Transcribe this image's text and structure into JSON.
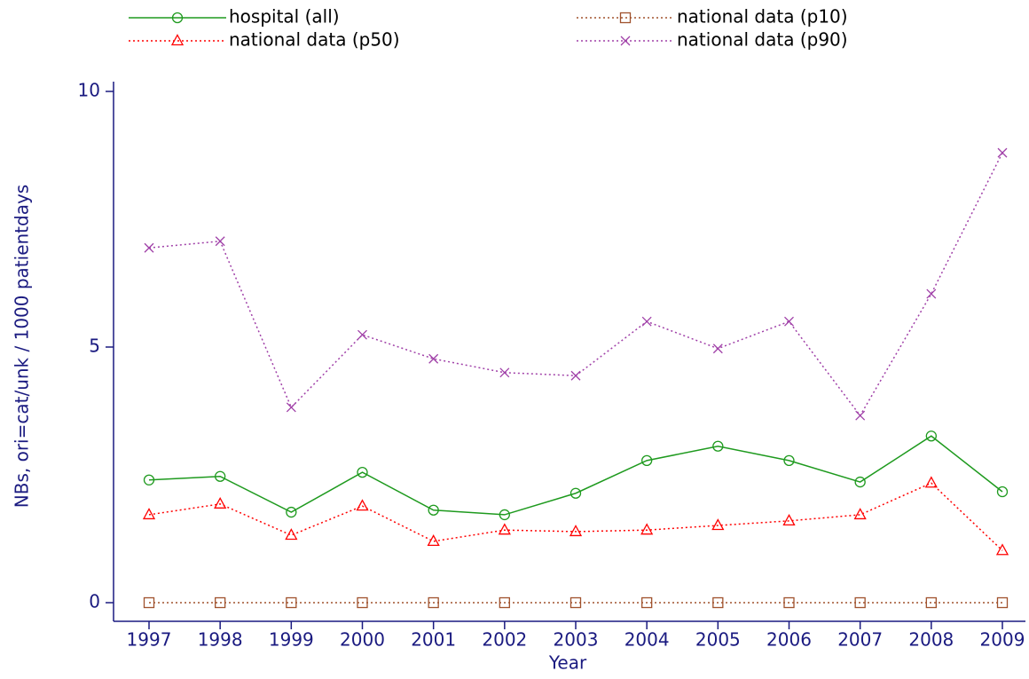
{
  "chart_data": {
    "type": "line",
    "xlabel": "Year",
    "ylabel": "NBs, ori=cat/unk / 1000 patientdays",
    "categories": [
      "1997",
      "1998",
      "1999",
      "2000",
      "2001",
      "2002",
      "2003",
      "2004",
      "2005",
      "2006",
      "2007",
      "2008",
      "2009"
    ],
    "series": [
      {
        "name": "hospital (all)",
        "color": "#1e9a1e",
        "marker": "circle",
        "dash": "solid",
        "values": [
          2.4,
          2.47,
          1.77,
          2.55,
          1.81,
          1.72,
          2.14,
          2.78,
          3.06,
          2.78,
          2.36,
          3.26,
          2.17
        ]
      },
      {
        "name": "national data (p10)",
        "color": "#a0522d",
        "marker": "square",
        "dash": "dotted",
        "values": [
          0,
          0,
          0,
          0,
          0,
          0,
          0,
          0,
          0,
          0,
          0,
          0,
          0
        ]
      },
      {
        "name": "national data (p50)",
        "color": "#ff0000",
        "marker": "triangle",
        "dash": "dotted",
        "values": [
          1.72,
          1.93,
          1.32,
          1.89,
          1.2,
          1.42,
          1.39,
          1.42,
          1.51,
          1.6,
          1.72,
          2.34,
          1.02
        ]
      },
      {
        "name": "national data (p90)",
        "color": "#a040a8",
        "marker": "x",
        "dash": "dotted",
        "values": [
          6.94,
          7.07,
          3.82,
          5.24,
          4.77,
          4.5,
          4.44,
          5.5,
          4.97,
          5.5,
          3.66,
          6.04,
          8.8
        ]
      }
    ],
    "ylim": [
      0,
      10
    ],
    "yticks": [
      0,
      5,
      10
    ],
    "legend": "top"
  }
}
